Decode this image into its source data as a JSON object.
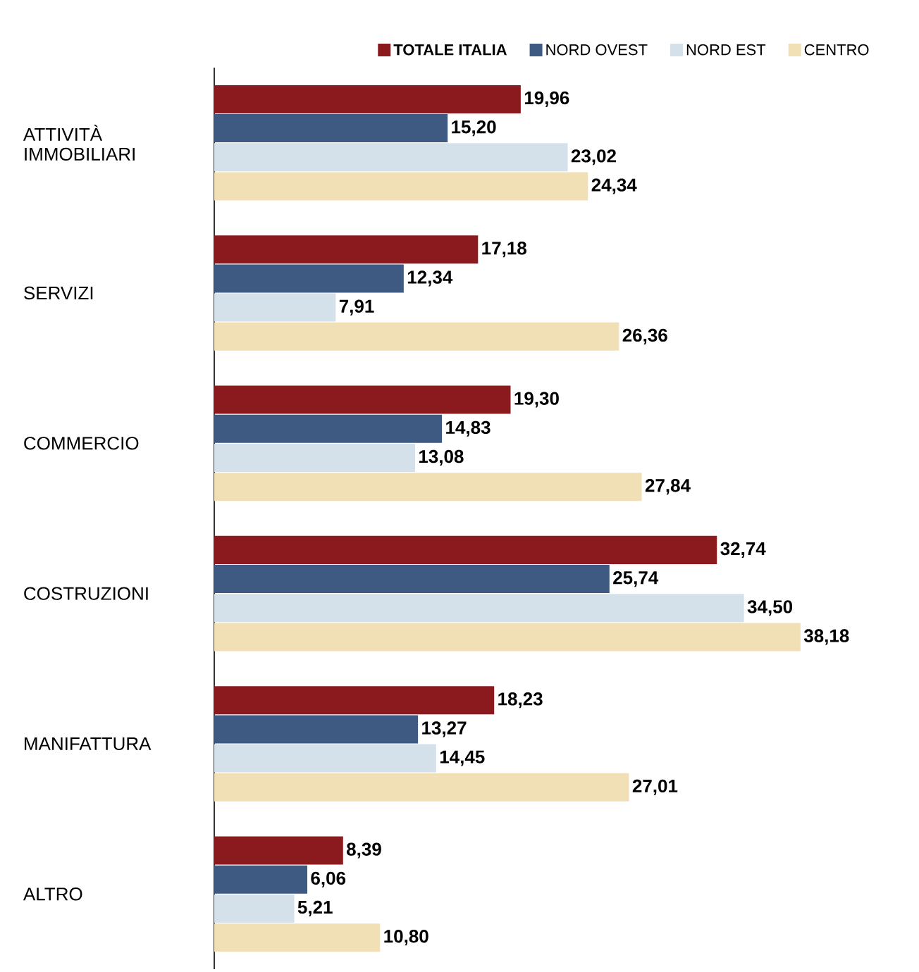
{
  "chart_data": {
    "type": "bar",
    "orientation": "horizontal",
    "legend": "top right",
    "categories": [
      "ATTIVITÀ IMMOBILIARI",
      "SERVIZI",
      "COMMERCIO",
      "COSTRUZIONI",
      "MANIFATTURA",
      "ALTRO"
    ],
    "series": [
      {
        "name": "TOTALE ITALIA",
        "color": "#8b1a1f",
        "values": [
          19.96,
          17.18,
          19.3,
          32.74,
          18.23,
          8.39
        ],
        "value_labels": [
          "19,96",
          "17,18",
          "19,30",
          "32,74",
          "18,23",
          "8,39"
        ]
      },
      {
        "name": "NORD OVEST",
        "color": "#3e5a82",
        "values": [
          15.2,
          12.34,
          14.83,
          25.74,
          13.27,
          6.06
        ],
        "value_labels": [
          "15,20",
          "12,34",
          "14,83",
          "25,74",
          "13,27",
          "6,06"
        ]
      },
      {
        "name": "NORD EST",
        "color": "#d4e0ea",
        "values": [
          23.02,
          7.91,
          13.08,
          34.5,
          14.45,
          5.21
        ],
        "value_labels": [
          "23,02",
          "7,91",
          "13,08",
          "34,50",
          "14,45",
          "5,21"
        ]
      },
      {
        "name": "CENTRO",
        "color": "#f1e0b5",
        "values": [
          24.34,
          26.36,
          27.84,
          38.18,
          27.01,
          10.8
        ],
        "value_labels": [
          "24,34",
          "26,36",
          "27,84",
          "38,18",
          "27,01",
          "10,80"
        ]
      }
    ]
  }
}
